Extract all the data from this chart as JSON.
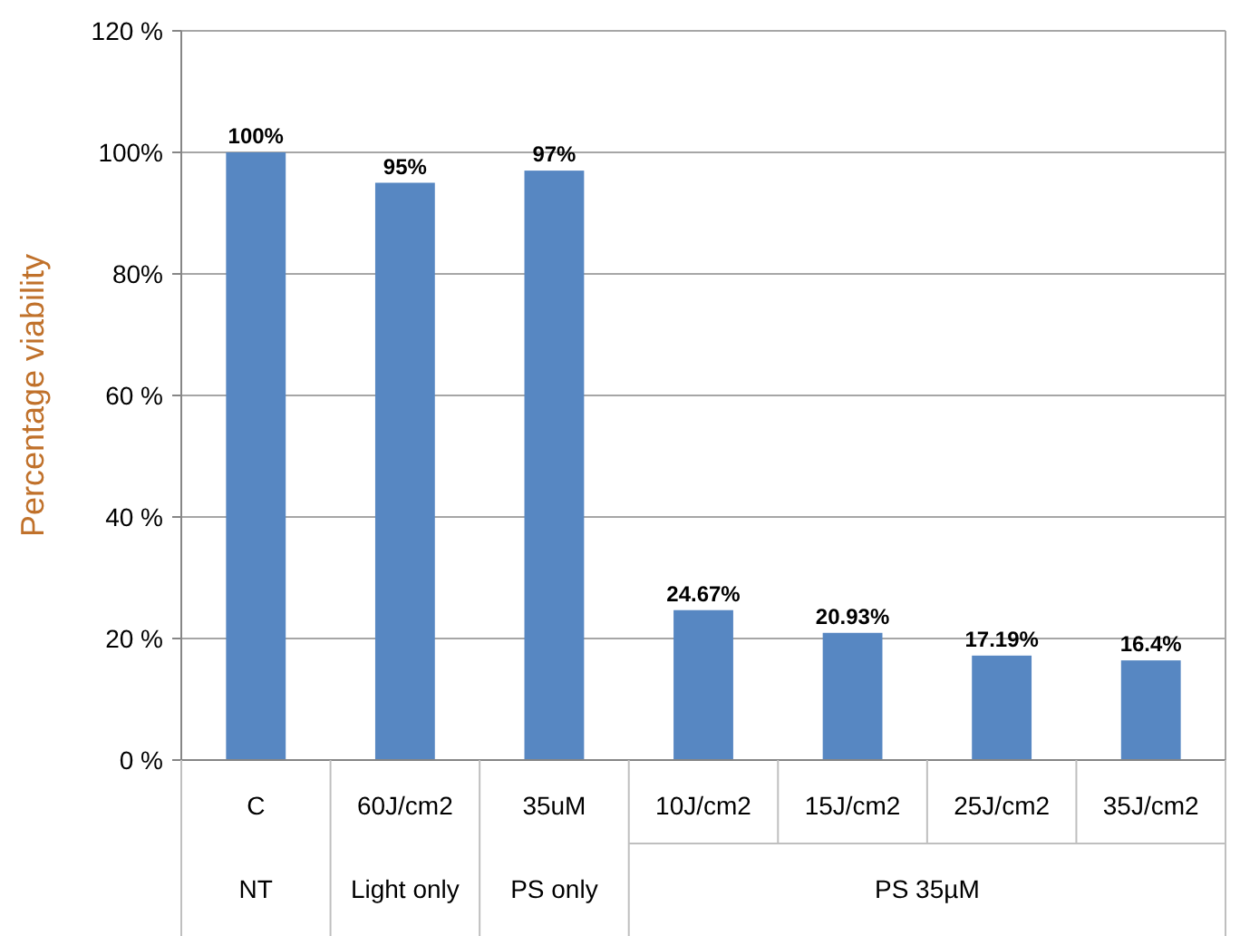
{
  "chart_data": {
    "type": "bar",
    "ylabel": "Percentage viability",
    "categories": [
      "C",
      "60J/cm2",
      "35uM",
      "10J/cm2",
      "15J/cm2",
      "25J/cm2",
      "35J/cm2"
    ],
    "values": [
      100,
      95,
      97,
      24.67,
      20.93,
      17.19,
      16.4
    ],
    "value_labels": [
      "100%",
      "95%",
      "97%",
      "24.67%",
      "20.93%",
      "17.19%",
      "16.4%"
    ],
    "color": "#5787c2",
    "ylim": [
      0,
      120
    ],
    "yticks": [
      {
        "value": 0,
        "label": "0 %"
      },
      {
        "value": 20,
        "label": "20 %"
      },
      {
        "value": 40,
        "label": "40 %"
      },
      {
        "value": 60,
        "label": "60 %"
      },
      {
        "value": 80,
        "label": "80%"
      },
      {
        "value": 100,
        "label": "100%"
      },
      {
        "value": 120,
        "label": "120 %"
      }
    ],
    "grid": "y",
    "annotations": [
      "NT",
      "Light only",
      "PS only",
      "PS 35µM"
    ]
  }
}
